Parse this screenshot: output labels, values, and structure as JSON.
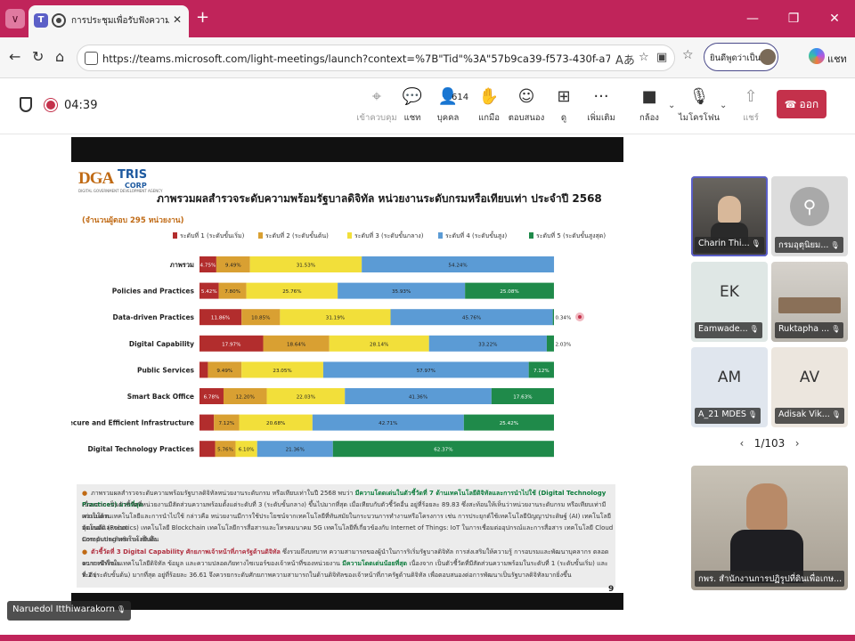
{
  "browser": {
    "tab_title": "การประชุมเพื่อรับฟังความคิดเห็นต่อ",
    "url": "https://teams.microsoft.com/light-meetings/launch?context=%7B\"Tid\"%3A\"57b9ca39-f573-430f-a7ac-0ef5e372b501\"%2C\"O...",
    "profile_label": "ยินดีพูดว่าเป็นคุณ",
    "sidebar_label": "แชท",
    "colors": {
      "frame": "#c0245a"
    }
  },
  "meeting": {
    "timer": "04:39",
    "people_count": "614",
    "toolbar": {
      "control": "เข้าควบคุม",
      "chat": "แชท",
      "people": "บุคคล",
      "raise": "แกมือ",
      "react": "ตอบสนอง",
      "view": "ดู",
      "more": "เพิ่มเติม",
      "camera": "กล้อง",
      "mic": "ไมโครโฟน",
      "share": "แชร์",
      "leave": "ออก"
    },
    "presenter": "Naruedol Itthiwarakorn",
    "participants": [
      {
        "name": "Charin Thi...",
        "kind": "photo-dark"
      },
      {
        "name": "กรมอุตุนิยม...",
        "kind": "gray",
        "initials": ""
      },
      {
        "name": "Eamwade...",
        "kind": "initials",
        "initials": "EK"
      },
      {
        "name": "Ruktapha ...",
        "kind": "photo-room"
      },
      {
        "name": "A_21 MDES",
        "kind": "initials",
        "initials": "AM"
      },
      {
        "name": "Adisak Vik...",
        "kind": "initials",
        "initials": "AV"
      }
    ],
    "pager": "1/103",
    "featured_participant": "กพร. สำนักงานการปฏิรูปที่ดินเพื่อเกษ..."
  },
  "slide": {
    "logo_dga": "DGA",
    "logo_dga_sub": "DIGITAL GOVERNMENT DEVELOPMENT AGENCY",
    "logo_tris": "TRIS",
    "logo_tris_sub": "CORP",
    "title": "ภาพรวมผลสำรวจระดับความพร้อมรัฐบาลดิจิทัล หน่วยงานระดับกรมหรือเทียบเท่า ประจำปี 2568",
    "subtitle": "(จำนวนผู้ตอบ 295 หน่วยงาน)",
    "page_number": "9",
    "notes": {
      "n1a": "ภาพรวมผลสำรวจระดับความพร้อมรัฐบาลดิจิทัลหน่วยงานระดับกรม หรือเทียบเท่าในปี 2568 พบว่า",
      "n1b": "มีความโดดเด่นในตัวชี้วัดที่ 7 ด้านเทคโนโลยีดิจิทัลและการนำไปใช้ (Digital Technology Practices) มากที่สุด",
      "n1c": "เนื่องจาก เป็นตัวชี้วัดที่หน่วยงานมีสัดส่วนความพร้อมตั้งแต่ระดับที่ 3 (ระดับขั้นกลาง) ขึ้นไปมากที่สุด เมื่อเทียบกับตัวชี้วัดอื่น อยู่ที่ร้อยละ 89.83 ซึ่งสะท้อนให้เห็นว่าหน่วยงานระดับกรม หรือเทียบเท่ามีความโดด",
      "n1d": "เด่นในด้านเทคโนโลยีและการนำไปใช้ กล่าวคือ หน่วยงานมีการใช้ประโยชน์จากเทคโนโลยีที่ทันสมัยในกระบวนการทำงานหรือโครงการ เช่น การประยุกต์ใช้เทคโนโลยีปัญญาประดิษฐ์ (AI) เทคโนโลยีหุ่นยนต์และระบบ",
      "n1e": "อัตโนมัติ (Robotics) เทคโนโลยี Blockchain เทคโนโลยีการสื่อสารและโทรคมนาคม 5G เทคโนโลยีที่เกี่ยวข้องกับ Internet of Things: IoT ในการเชื่อมต่ออุปกรณ์และการสื่อสาร เทคโนโลยี Cloud Computing เทคโนโลยีเพื่อ",
      "n1f": "ยกระดับประสิทธิภาพ เป็นต้น",
      "n2a": "ตัวชี้วัดที่ 3 Digital Capability ศักยภาพเจ้าหน้าที่ภาครัฐด้านดิจิทัล",
      "n2b": "ซึ่งรวมถึงบทบาท ความสามารถของผู้นำในการริเริ่มรัฐบาลดิจิทัล การส่งเสริมให้ความรู้ การอบรมและพัฒนาบุคลากร ตลอดจนการมีทักษะ",
      "n2c": "ความเข้าใจในเทคโนโลยีดิจิทัล ข้อมูล และความปลอดภัยทางไซเบอร์ของเจ้าหน้าที่ของหน่วยงาน",
      "n2d": "มีความโดดเด่นน้อยที่สุด",
      "n2e": "เนื่องจาก เป็นตัวชี้วัดที่มีสัดส่วนความพร้อมในระดับที่ 1 (ระดับขั้นเริ่ม) และระดับ",
      "n2f": "ที่ 2 (ระดับขั้นต้น) มากที่สุด อยู่ที่ร้อยละ 36.61 จึงควรยกระดับศักยภาพความสามารถในด้านดิจิทัลของเจ้าหน้าที่ภาครัฐด้านดิจิทัล เพื่อตอบสนองต่อการพัฒนาเป็นรัฐบาลดิจิทัลมากยิ่งขึ้น"
    }
  },
  "chart_data": {
    "type": "bar",
    "orientation": "horizontal",
    "stacked": true,
    "percent_stacked": true,
    "categories": [
      "ภาพรวม",
      "Policies and Practices",
      "Data-driven Practices",
      "Digital Capability",
      "Public Services",
      "Smart Back Office",
      "Secure and Efficient Infrastructure",
      "Digital Technology Practices"
    ],
    "series": [
      {
        "name": "ระดับที่ 1 (ระดับขั้นเริ่ม)",
        "color": "#b22d2d",
        "values": [
          4.75,
          5.42,
          11.86,
          17.97,
          2.37,
          6.78,
          4.07,
          4.41
        ]
      },
      {
        "name": "ระดับที่ 2 (ระดับขั้นต้น)",
        "color": "#d9a032",
        "values": [
          9.49,
          7.8,
          10.85,
          18.64,
          9.49,
          12.2,
          7.12,
          5.76
        ]
      },
      {
        "name": "ระดับที่ 3 (ระดับขั้นกลาง)",
        "color": "#f2df3a",
        "values": [
          31.53,
          25.76,
          31.19,
          28.14,
          23.05,
          22.03,
          20.68,
          6.1
        ]
      },
      {
        "name": "ระดับที่ 4 (ระดับขั้นสูง)",
        "color": "#5b9bd5",
        "values": [
          54.24,
          35.93,
          45.76,
          33.22,
          57.97,
          41.36,
          42.71,
          21.36
        ]
      },
      {
        "name": "ระดับที่ 5 (ระดับขั้นสูงสุด)",
        "color": "#1f8a4a",
        "values": [
          0,
          25.08,
          0.34,
          2.03,
          7.12,
          17.63,
          25.42,
          62.37
        ]
      }
    ],
    "data_labels": [
      [
        "4.75%",
        "9.49%",
        "31.53%",
        "54.24%",
        ""
      ],
      [
        "5.42%",
        "7.80%",
        "25.76%",
        "35.93%",
        "25.08%"
      ],
      [
        "11.86%",
        "10.85%",
        "31.19%",
        "45.76%",
        "0.34%"
      ],
      [
        "17.97%",
        "18.64%",
        "28.14%",
        "33.22%",
        "2.03%"
      ],
      [
        "2.37%",
        "9.49%",
        "23.05%",
        "57.97%",
        "7.12%"
      ],
      [
        "6.78%",
        "12.20%",
        "22.03%",
        "41.36%",
        "17.63%"
      ],
      [
        "4.07%",
        "7.12%",
        "20.68%",
        "42.71%",
        "25.42%"
      ],
      [
        "4.41%",
        "5.76%",
        "6.10%",
        "21.36%",
        "62.37%"
      ]
    ],
    "xlim": [
      0,
      100
    ],
    "legend_position": "top",
    "grid": false
  }
}
